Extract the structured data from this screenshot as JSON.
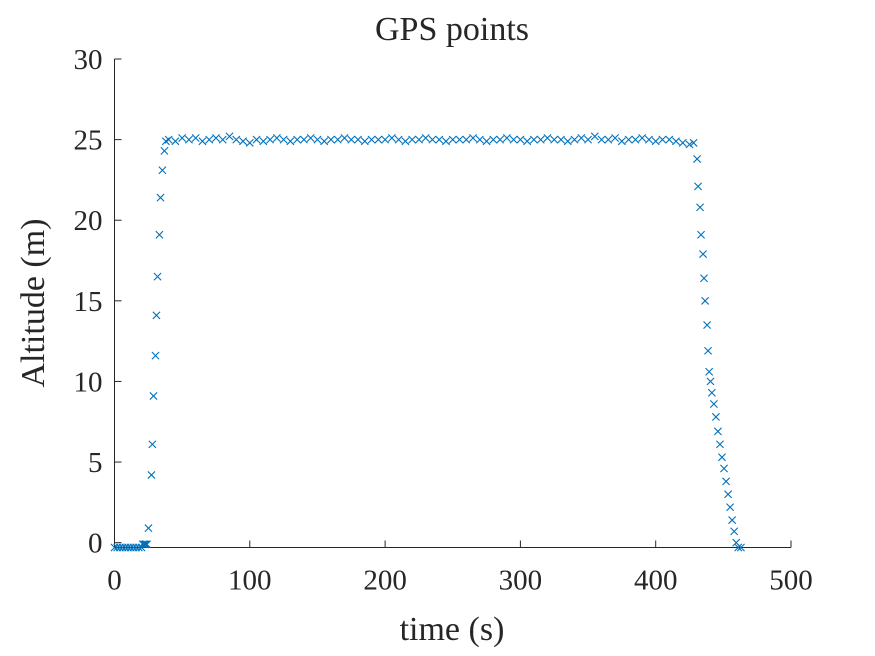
{
  "chart_data": {
    "type": "scatter",
    "title": "GPS points",
    "xlabel": "time (s)",
    "ylabel": "Altitude (m)",
    "xlim": [
      0,
      500
    ],
    "ylim": [
      -0.3,
      30
    ],
    "xticks": [
      0,
      100,
      200,
      300,
      400,
      500
    ],
    "yticks": [
      0,
      5,
      10,
      15,
      20,
      25,
      30
    ],
    "marker": "x",
    "color": "#0072bd",
    "series": [
      {
        "name": "GPS points",
        "color": "#0072bd",
        "x": [
          0,
          2,
          4,
          6,
          8,
          10,
          12,
          14,
          16,
          18,
          20,
          21,
          22,
          23,
          24,
          25.1,
          27.3,
          28,
          28.8,
          30.3,
          31,
          31.8,
          33.2,
          34,
          35.4,
          36.9,
          38,
          40,
          45,
          50,
          55,
          60,
          65,
          70,
          75,
          80,
          85,
          90,
          95,
          100,
          105,
          110,
          115,
          120,
          125,
          130,
          135,
          140,
          145,
          150,
          155,
          160,
          165,
          170,
          175,
          180,
          185,
          190,
          195,
          200,
          205,
          210,
          215,
          220,
          225,
          230,
          235,
          240,
          245,
          250,
          255,
          260,
          265,
          270,
          275,
          280,
          285,
          290,
          295,
          300,
          305,
          310,
          315,
          320,
          325,
          330,
          335,
          340,
          345,
          350,
          355,
          360,
          365,
          370,
          375,
          380,
          385,
          390,
          395,
          400,
          405,
          410,
          415,
          420,
          425,
          428,
          430.6,
          431.3,
          432.8,
          433.5,
          435,
          435.7,
          436.5,
          438,
          438.7,
          439.5,
          440.5,
          441.5,
          443,
          444.5,
          446,
          447.5,
          449,
          450.5,
          452,
          453.5,
          455,
          456.5,
          458,
          459.5,
          461,
          463
        ],
        "values": [
          -0.3,
          -0.3,
          -0.3,
          -0.3,
          -0.3,
          -0.3,
          -0.3,
          -0.3,
          -0.3,
          -0.3,
          -0.3,
          -0.1,
          -0.1,
          -0.1,
          -0.1,
          0.9,
          4.2,
          6.1,
          9.1,
          11.6,
          14.1,
          16.5,
          19.1,
          21.4,
          23.1,
          24.3,
          24.9,
          25,
          24.9,
          25.1,
          25,
          25.1,
          24.9,
          25,
          25.1,
          25,
          25.2,
          25,
          24.9,
          24.8,
          25,
          24.9,
          25,
          25.1,
          25,
          24.9,
          25,
          25,
          25.1,
          25,
          24.9,
          25,
          25,
          25.1,
          25,
          25,
          24.9,
          25,
          25,
          25,
          25.1,
          25,
          24.9,
          25,
          25,
          25.1,
          25,
          25,
          24.9,
          25,
          25,
          25,
          25.1,
          25,
          24.9,
          25,
          25,
          25.1,
          25,
          25,
          24.9,
          25,
          25,
          25.1,
          25,
          25,
          24.9,
          25,
          25.1,
          25,
          25.2,
          25,
          25,
          25.1,
          24.9,
          25,
          25,
          25.1,
          25,
          24.9,
          25,
          25,
          24.9,
          24.8,
          24.7,
          24.8,
          23.8,
          22.1,
          20.8,
          19.1,
          17.9,
          16.4,
          15,
          13.5,
          11.9,
          10.6,
          10,
          9.3,
          8.6,
          7.8,
          6.9,
          6.1,
          5.3,
          4.6,
          3.8,
          3,
          2.2,
          1.4,
          0.7,
          0,
          -0.3,
          -0.3
        ]
      }
    ]
  }
}
